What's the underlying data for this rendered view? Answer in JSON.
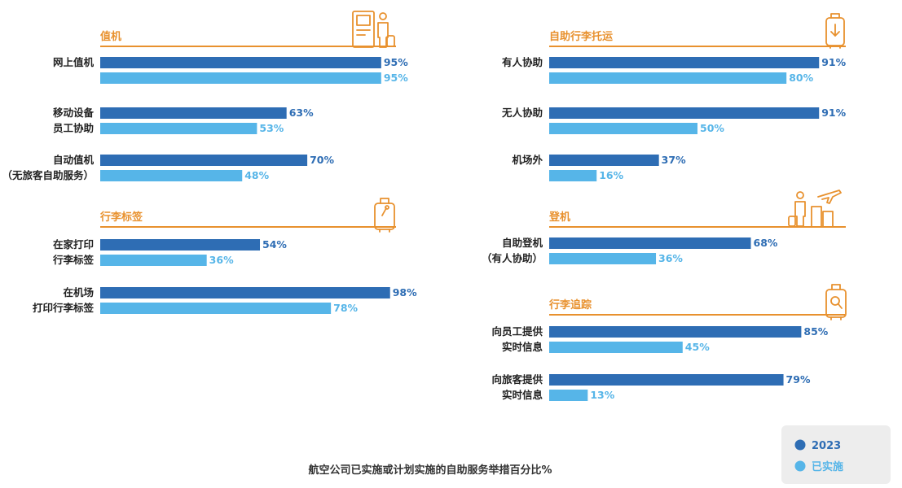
{
  "colors": {
    "series_2023": "#2E6DB4",
    "series_implemented": "#56B5E8",
    "section_title": "#E8912E",
    "rule": "#E8912E",
    "legend_bg": "#EDEDED"
  },
  "chart_data": {
    "type": "bar",
    "orientation": "horizontal",
    "unit": "%",
    "xlim": [
      0,
      100
    ],
    "grid": false,
    "legend_position": "bottom-right",
    "series_names": [
      "2023",
      "已实施"
    ],
    "panels": [
      {
        "id": "checkin",
        "title": "值机",
        "icon": "kiosk-traveler-icon",
        "categories": [
          {
            "label": [
              "网上值机"
            ],
            "values": [
              95,
              95
            ]
          },
          {
            "label": [
              "移动设备",
              "员工协助"
            ],
            "values": [
              63,
              53
            ]
          },
          {
            "label": [
              "自动值机",
              "（无旅客自助服务）"
            ],
            "values": [
              70,
              48
            ]
          }
        ]
      },
      {
        "id": "bag-tag",
        "title": "行李标签",
        "icon": "luggage-tag-icon",
        "categories": [
          {
            "label": [
              "在家打印",
              "行李标签"
            ],
            "values": [
              54,
              36
            ]
          },
          {
            "label": [
              "在机场",
              "打印行李标签"
            ],
            "values": [
              98,
              78
            ]
          }
        ]
      },
      {
        "id": "bag-drop",
        "title": "自助行李托运",
        "icon": "bag-drop-icon",
        "categories": [
          {
            "label": [
              "有人协助"
            ],
            "values": [
              91,
              80
            ]
          },
          {
            "label": [
              "无人协助"
            ],
            "values": [
              91,
              50
            ]
          },
          {
            "label": [
              "机场外"
            ],
            "values": [
              37,
              16
            ]
          }
        ]
      },
      {
        "id": "boarding",
        "title": "登机",
        "icon": "boarding-gate-icon",
        "categories": [
          {
            "label": [
              "自助登机",
              "（有人协助）"
            ],
            "values": [
              68,
              36
            ]
          }
        ]
      },
      {
        "id": "bag-tracking",
        "title": "行李追踪",
        "icon": "luggage-search-icon",
        "categories": [
          {
            "label": [
              "向员工提供",
              "实时信息"
            ],
            "values": [
              85,
              45
            ]
          },
          {
            "label": [
              "向旅客提供",
              "实时信息"
            ],
            "values": [
              79,
              13
            ]
          }
        ]
      }
    ],
    "footer_title": "航空公司已实施或计划实施的自助服务举措百分比%"
  }
}
